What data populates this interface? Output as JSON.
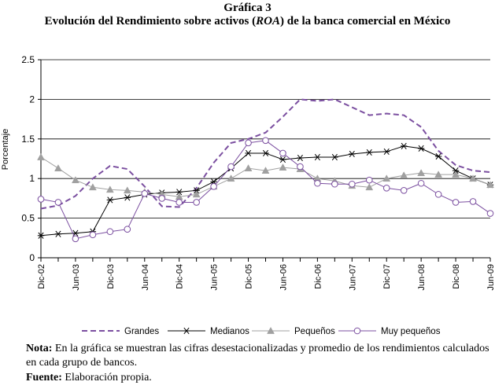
{
  "header": {
    "figure_number": "Gráfica 3",
    "title_before": "Evolución del Rendimiento sobre activos (",
    "title_italic": "ROA",
    "title_after": ") de la banca comercial en México"
  },
  "footer": {
    "note_label": "Nota:",
    "note_text": " En la gráfica se muestran las cifras desestacionalizadas y promedio de los rendimientos calculados en cada grupo de bancos.",
    "source_label": "Fuente:",
    "source_text": " Elaboración propia."
  },
  "chart_data": {
    "type": "line",
    "ylabel": "Porcentaje",
    "ylim": [
      0,
      2.5
    ],
    "yticks": [
      0,
      0.5,
      1,
      1.5,
      2,
      2.5
    ],
    "ytick_labels": [
      "0",
      "0.5",
      "1",
      "1.5",
      "2",
      "2.5"
    ],
    "grid": true,
    "x_tick_labels": [
      "Dic-02",
      "Jun-03",
      "Dic-03",
      "Jun-04",
      "Dic-04",
      "Jun-05",
      "Dic-05",
      "Jun-06",
      "Dic-06",
      "Jun-07",
      "Dic-07",
      "Jun-08",
      "Dic-08",
      "Jun-09"
    ],
    "x_range": [
      0,
      78
    ],
    "legend_position": "bottom",
    "series": [
      {
        "name": "Grandes",
        "style": "dashed",
        "color": "#7b4fa0",
        "x": [
          0,
          3,
          6,
          9,
          12,
          15,
          18,
          21,
          24,
          27,
          30,
          33,
          36,
          39,
          42,
          45,
          48,
          51,
          54,
          57,
          60,
          63,
          66,
          69,
          72,
          75,
          78
        ],
        "values": [
          0.62,
          0.66,
          0.78,
          1.0,
          1.16,
          1.12,
          0.9,
          0.65,
          0.64,
          0.88,
          1.2,
          1.45,
          1.5,
          1.58,
          1.78,
          2.0,
          1.98,
          2.0,
          1.9,
          1.8,
          1.82,
          1.8,
          1.65,
          1.35,
          1.17,
          1.1,
          1.08
        ]
      },
      {
        "name": "Medianos",
        "style": "asterisk",
        "color": "#000000",
        "x": [
          0,
          3,
          6,
          9,
          12,
          15,
          18,
          21,
          24,
          27,
          30,
          33,
          36,
          39,
          42,
          45,
          48,
          51,
          54,
          57,
          60,
          63,
          66,
          69,
          72,
          75,
          78
        ],
        "values": [
          0.28,
          0.3,
          0.31,
          0.33,
          0.73,
          0.76,
          0.8,
          0.82,
          0.83,
          0.85,
          0.96,
          1.13,
          1.32,
          1.32,
          1.24,
          1.26,
          1.27,
          1.27,
          1.31,
          1.33,
          1.34,
          1.41,
          1.38,
          1.28,
          1.1,
          1.0,
          0.92
        ]
      },
      {
        "name": "Pequeños",
        "style": "triangle",
        "color": "#a0a0a0",
        "x": [
          0,
          3,
          6,
          9,
          12,
          15,
          18,
          21,
          24,
          27,
          30,
          33,
          36,
          39,
          42,
          45,
          48,
          51,
          54,
          57,
          60,
          63,
          66,
          69,
          72,
          75,
          78
        ],
        "values": [
          1.27,
          1.13,
          0.98,
          0.89,
          0.86,
          0.85,
          0.83,
          0.8,
          0.77,
          0.8,
          0.9,
          1.0,
          1.13,
          1.1,
          1.14,
          1.12,
          1.0,
          0.97,
          0.91,
          0.89,
          1.0,
          1.04,
          1.07,
          1.05,
          1.05,
          1.0,
          0.92
        ]
      },
      {
        "name": "Muy pequeños",
        "style": "circle",
        "color": "#7b4fa0",
        "x": [
          0,
          3,
          6,
          9,
          12,
          15,
          18,
          21,
          24,
          27,
          30,
          33,
          36,
          39,
          42,
          45,
          48,
          51,
          54,
          57,
          60,
          63,
          66,
          69,
          72,
          75,
          78
        ],
        "values": [
          0.74,
          0.7,
          0.24,
          0.29,
          0.33,
          0.36,
          0.81,
          0.75,
          0.7,
          0.7,
          0.9,
          1.15,
          1.45,
          1.48,
          1.32,
          1.15,
          0.94,
          0.93,
          0.93,
          0.98,
          0.88,
          0.85,
          0.94,
          0.8,
          0.7,
          0.71,
          0.56
        ]
      }
    ]
  }
}
